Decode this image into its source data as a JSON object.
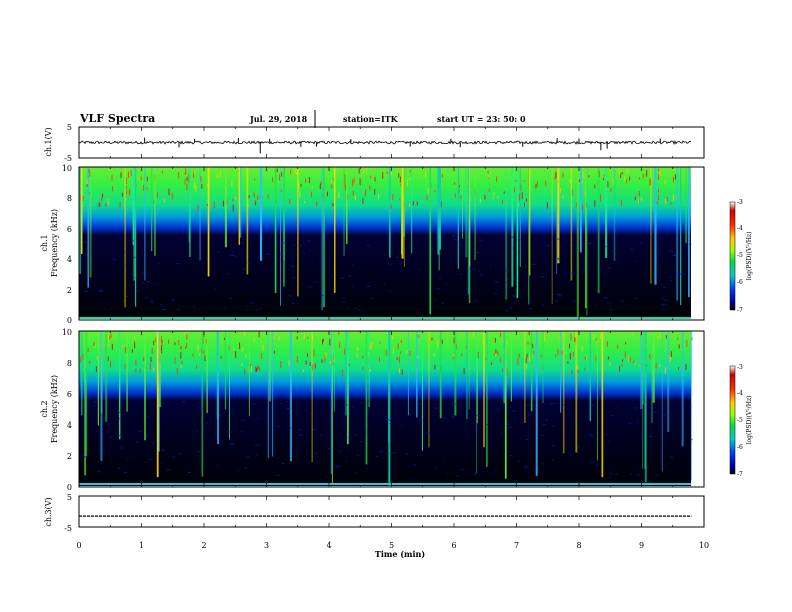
{
  "header": {
    "title": "VLF Spectra",
    "date": "Jul. 29, 2018",
    "station": "station=ITK",
    "start_time": "start UT =  23: 50: 0"
  },
  "chart_data": [
    {
      "type": "line",
      "panel": "ch1-waveform",
      "ylabel": "ch.1(V)",
      "ytick_labels": [
        "5",
        "-5"
      ],
      "ylim": [
        -5,
        5
      ],
      "xlim": [
        0,
        10
      ],
      "xlabel": "",
      "x_extent": [
        0,
        9.8
      ],
      "baseline": 0,
      "series": [
        {
          "values_summary": "noisy signal around 0 V with spikes"
        }
      ],
      "spikes": [
        {
          "x": 1.05,
          "y": 1.6
        },
        {
          "x": 1.6,
          "y": -1.6
        },
        {
          "x": 1.85,
          "y": 1.2
        },
        {
          "x": 2.55,
          "y": 1.5
        },
        {
          "x": 2.9,
          "y": -3.5
        },
        {
          "x": 3.05,
          "y": 1.2
        },
        {
          "x": 3.55,
          "y": -1.4
        },
        {
          "x": 3.8,
          "y": -1.3
        },
        {
          "x": 4.35,
          "y": 1.1
        },
        {
          "x": 5.3,
          "y": -1.3
        },
        {
          "x": 5.95,
          "y": 1.2
        },
        {
          "x": 6.1,
          "y": -1.5
        },
        {
          "x": 7.1,
          "y": -1.4
        },
        {
          "x": 7.65,
          "y": 1.4
        },
        {
          "x": 8.0,
          "y": 1.3
        },
        {
          "x": 8.35,
          "y": -2.5
        },
        {
          "x": 8.45,
          "y": -2.0
        },
        {
          "x": 9.3,
          "y": 1.3
        }
      ]
    },
    {
      "type": "heatmap",
      "panel": "ch1-spectrogram",
      "ylabel_top": "ch.1",
      "ylabel": "Frequency (kHz)",
      "ytick_labels": [
        "0",
        "2",
        "4",
        "6",
        "8",
        "10"
      ],
      "ylim": [
        0,
        10
      ],
      "xlim": [
        0,
        10
      ],
      "x_extent": [
        0,
        9.8
      ],
      "colorbar": {
        "label": "log(PSD)(V²/Hz)",
        "ticks": [
          "-3",
          "-4",
          "-5",
          "-6",
          "-7"
        ],
        "range": [
          -7,
          -3
        ]
      },
      "description": "high intensity above ~6 kHz, dark below with vertical bright streaks"
    },
    {
      "type": "heatmap",
      "panel": "ch2-spectrogram",
      "ylabel_top": "ch.2",
      "ylabel": "Frequency (kHz)",
      "ytick_labels": [
        "0",
        "2",
        "4",
        "6",
        "8",
        "10"
      ],
      "ylim": [
        0,
        10
      ],
      "xlim": [
        0,
        10
      ],
      "x_extent": [
        0,
        9.8
      ],
      "colorbar": {
        "label": "log(PSD)(V²/Hz)",
        "ticks": [
          "-3",
          "-4",
          "-5",
          "-6",
          "-7"
        ],
        "range": [
          -7,
          -3
        ]
      },
      "description": "high intensity above ~6 kHz, dark below with vertical bright streaks"
    },
    {
      "type": "line",
      "panel": "ch3-waveform",
      "ylabel": "ch.3(V)",
      "ytick_labels": [
        "5",
        "-5"
      ],
      "ylim": [
        -5,
        5
      ],
      "xlim": [
        0,
        10
      ],
      "xlabel": "Time (min)",
      "xtick_labels": [
        "0",
        "1",
        "2",
        "3",
        "4",
        "5",
        "6",
        "7",
        "8",
        "9",
        "10"
      ],
      "x_extent": [
        0,
        9.8
      ],
      "baseline": -1.5
    }
  ]
}
